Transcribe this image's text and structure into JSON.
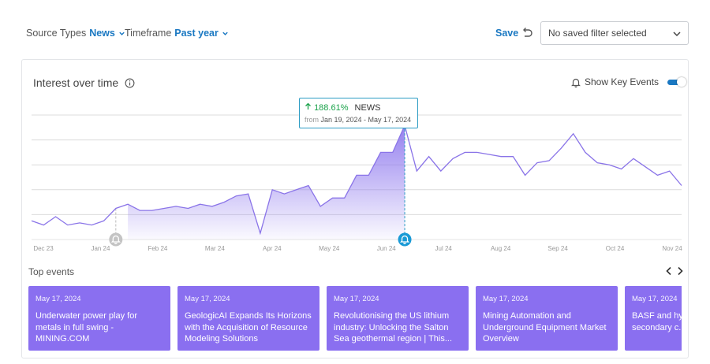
{
  "filters": {
    "source_label": "Source Types",
    "source_value": "News",
    "time_label": "Timeframe",
    "time_value": "Past year"
  },
  "toolbar": {
    "save_label": "Save",
    "saved_filter_value": "No saved filter selected"
  },
  "card": {
    "title": "Interest over time",
    "key_events_label": "Show Key Events",
    "key_events_on": true
  },
  "tooltip": {
    "change": "188.61%",
    "series": "NEWS",
    "from_label": "from",
    "range": "Jan 19, 2024 - May 17, 2024"
  },
  "chart_data": {
    "type": "area",
    "x_tick_labels": [
      "Dec 23",
      "Jan 24",
      "Feb 24",
      "Mar 24",
      "Apr 24",
      "May 24",
      "Jun 24",
      "Jul 24",
      "Aug 24",
      "Sep 24",
      "Oct 24",
      "Nov 24"
    ],
    "series": [
      {
        "values": [
          9,
          7,
          11,
          7,
          8,
          7,
          9,
          15,
          17,
          14,
          14,
          15,
          16,
          15,
          17,
          16,
          18,
          21,
          22,
          3,
          24,
          22,
          24,
          26,
          16,
          20,
          20,
          31,
          31,
          42,
          42,
          55,
          33,
          40,
          33,
          39,
          42,
          42,
          41,
          40,
          40,
          31,
          37,
          38,
          44,
          51,
          42,
          37,
          36,
          34,
          39,
          35,
          31,
          33,
          26
        ]
      }
    ],
    "highlight_index": 31,
    "shaded_range": [
      8,
      31
    ],
    "key_event_indices": [
      7,
      31
    ],
    "grid": true
  },
  "events": {
    "title": "Top events",
    "items": [
      {
        "date": "May 17, 2024",
        "headline": "Underwater power play for metals in full swing - MINING.COM"
      },
      {
        "date": "May 17, 2024",
        "headline": "GeologicAI Expands Its Horizons with the Acquisition of Resource Modeling Solutions"
      },
      {
        "date": "May 17, 2024",
        "headline": "Revolutionising the US lithium industry: Unlocking the Salton Sea geothermal region | This..."
      },
      {
        "date": "May 17, 2024",
        "headline": "Mining Automation and Underground Equipment Market Overview"
      },
      {
        "date": "May 17, 2024",
        "headline": "BASF and hy... Consulting, p... secondary c..."
      }
    ]
  },
  "colors": {
    "accent": "#1a78c2",
    "line": "#8a74e8",
    "area_top": "#8f79ee",
    "event_card": "#8a6ff0",
    "positive": "#1aa24a",
    "tooltip_border": "#2d9cc4"
  },
  "icons": {
    "chevron": "chevron-down-icon",
    "undo": "undo-icon",
    "info": "info-icon",
    "bell": "bell-icon",
    "prev": "chevron-left-icon",
    "next": "chevron-right-icon"
  }
}
